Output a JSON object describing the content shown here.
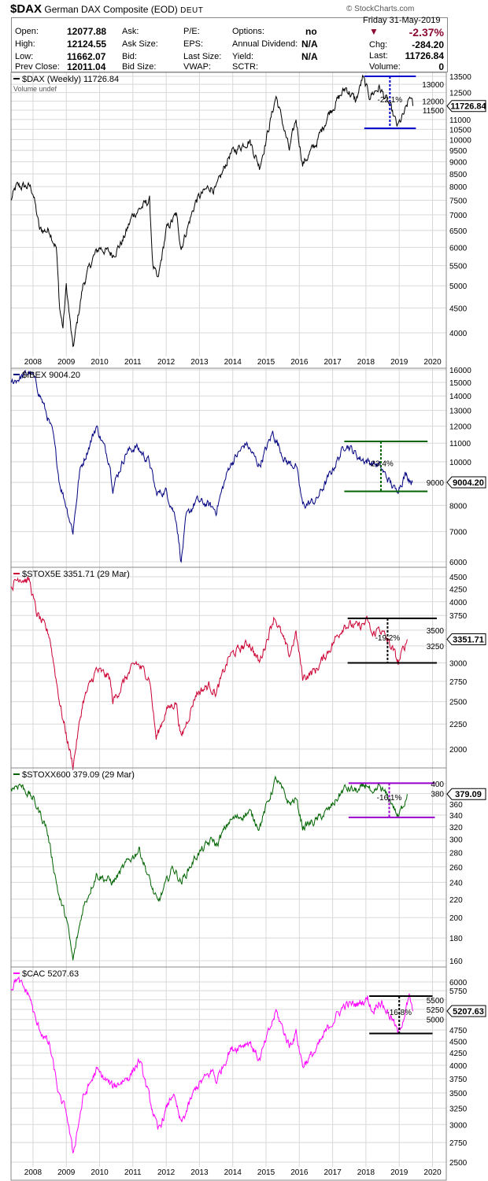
{
  "header": {
    "symbol": "$DAX",
    "name": "German DAX Composite (EOD)",
    "exchange": "DEUT",
    "copyright": "© StockCharts.com",
    "date": "Friday  31-May-2019",
    "fields": {
      "open_label": "Open:",
      "open": "12077.88",
      "high_label": "High:",
      "high": "12124.55",
      "low_label": "Low:",
      "low": "11662.07",
      "prev_label": "Prev Close:",
      "prev": "12011.04",
      "ask_label": "Ask:",
      "asksize_label": "Ask Size:",
      "bid_label": "Bid:",
      "bidsize_label": "Bid Size:",
      "pe_label": "P/E:",
      "eps_label": "EPS:",
      "lastsize_label": "Last Size:",
      "vwap_label": "VWAP:",
      "options_label": "Options:",
      "options": "no",
      "dividend_label": "Annual Dividend:",
      "dividend": "N/A",
      "yield_label": "Yield:",
      "yield": "N/A",
      "sctr_label": "SCTR:",
      "pct_change": "-2.37%",
      "chg_label": "Chg:",
      "chg": "-284.20",
      "last_label": "Last:",
      "last": "11726.84",
      "volume_label": "Volume:",
      "volume": "0"
    },
    "colors": {
      "down": "#8b0a32"
    }
  },
  "chart_data": [
    {
      "type": "line",
      "scale": "log",
      "legend": "$DAX (Weekly) 11726.84",
      "legend2": "Volume undef",
      "color": "#000000",
      "last_tag": "11726.84",
      "ticks": [
        13500,
        13000,
        12500,
        12000,
        11500,
        11000,
        10500,
        10000,
        9500,
        9000,
        8500,
        8000,
        7500,
        7000,
        6500,
        6000,
        5500,
        5000,
        4500,
        4000
      ],
      "x_ticks": [
        "2008",
        "2009",
        "2010",
        "2011",
        "2012",
        "2013",
        "2014",
        "2015",
        "2016",
        "2017",
        "2018",
        "2019",
        "2020"
      ],
      "annotation": {
        "high": 13500,
        "low": 10550,
        "label": "-22.1%",
        "color": "#0000cc",
        "x_from": 2017.95,
        "x_to": 2019.5,
        "x_mid": 2018.72
      },
      "points": [
        [
          2007.34,
          7500
        ],
        [
          2007.5,
          8000
        ],
        [
          2007.9,
          8000
        ],
        [
          2008.0,
          7800
        ],
        [
          2008.2,
          6500
        ],
        [
          2008.5,
          6500
        ],
        [
          2008.7,
          6000
        ],
        [
          2008.8,
          4500
        ],
        [
          2008.9,
          4100
        ],
        [
          2009.0,
          5000
        ],
        [
          2009.2,
          3700
        ],
        [
          2009.5,
          5000
        ],
        [
          2009.8,
          5700
        ],
        [
          2010.0,
          6000
        ],
        [
          2010.4,
          5800
        ],
        [
          2010.7,
          6200
        ],
        [
          2011.0,
          7000
        ],
        [
          2011.5,
          7500
        ],
        [
          2011.6,
          5500
        ],
        [
          2011.75,
          5100
        ],
        [
          2012.0,
          6500
        ],
        [
          2012.3,
          7000
        ],
        [
          2012.45,
          6000
        ],
        [
          2012.9,
          7500
        ],
        [
          2013.3,
          8000
        ],
        [
          2013.5,
          7900
        ],
        [
          2013.9,
          9300
        ],
        [
          2014.5,
          10000
        ],
        [
          2014.8,
          8800
        ],
        [
          2015.0,
          10000
        ],
        [
          2015.3,
          12300
        ],
        [
          2015.7,
          9500
        ],
        [
          2015.9,
          11000
        ],
        [
          2016.1,
          8900
        ],
        [
          2016.5,
          9800
        ],
        [
          2016.9,
          11400
        ],
        [
          2017.4,
          12800
        ],
        [
          2017.7,
          12000
        ],
        [
          2017.9,
          13400
        ],
        [
          2018.1,
          12300
        ],
        [
          2018.4,
          12800
        ],
        [
          2018.7,
          11800
        ],
        [
          2018.95,
          10600
        ],
        [
          2019.2,
          11500
        ],
        [
          2019.33,
          12300
        ],
        [
          2019.41,
          11727
        ]
      ]
    },
    {
      "type": "line",
      "scale": "log",
      "legend": "$IBEX 9004.20",
      "color": "#000080",
      "last_tag": "9004.20",
      "ticks": [
        16000,
        15000,
        14000,
        13000,
        12000,
        11000,
        10000,
        9000,
        8000,
        7000,
        6000
      ],
      "annotation": {
        "high": 11100,
        "low": 8600,
        "label": "-23.4%",
        "color": "#006400",
        "x_from": 2017.35,
        "x_to": 2019.85,
        "x_mid": 2018.45
      },
      "points": [
        [
          2007.34,
          15000
        ],
        [
          2007.9,
          15800
        ],
        [
          2008.0,
          15500
        ],
        [
          2008.3,
          13500
        ],
        [
          2008.6,
          11500
        ],
        [
          2008.8,
          9000
        ],
        [
          2009.0,
          8000
        ],
        [
          2009.2,
          7000
        ],
        [
          2009.4,
          9500
        ],
        [
          2009.9,
          12000
        ],
        [
          2010.3,
          10000
        ],
        [
          2010.4,
          8800
        ],
        [
          2010.8,
          10500
        ],
        [
          2011.1,
          10800
        ],
        [
          2011.5,
          10000
        ],
        [
          2011.7,
          8500
        ],
        [
          2012.0,
          8600
        ],
        [
          2012.3,
          7500
        ],
        [
          2012.45,
          6000
        ],
        [
          2012.6,
          7500
        ],
        [
          2012.9,
          8200
        ],
        [
          2013.3,
          8000
        ],
        [
          2013.5,
          7800
        ],
        [
          2013.9,
          9800
        ],
        [
          2014.4,
          11000
        ],
        [
          2014.8,
          9800
        ],
        [
          2015.2,
          11600
        ],
        [
          2015.6,
          10000
        ],
        [
          2015.9,
          9800
        ],
        [
          2016.1,
          8000
        ],
        [
          2016.5,
          8200
        ],
        [
          2016.9,
          9300
        ],
        [
          2017.4,
          11000
        ],
        [
          2017.8,
          10200
        ],
        [
          2018.1,
          10000
        ],
        [
          2018.4,
          9800
        ],
        [
          2018.9,
          8600
        ],
        [
          2019.2,
          9400
        ],
        [
          2019.4,
          9004
        ]
      ]
    },
    {
      "type": "line",
      "scale": "log",
      "legend": "$STOX5E 3351.71 (29 Mar)",
      "color": "#cc0033",
      "last_tag": "3351.71",
      "ticks": [
        4500,
        4250,
        4000,
        3750,
        3500,
        3250,
        3000,
        2750,
        2500,
        2250,
        2000
      ],
      "annotation": {
        "high": 3700,
        "low": 3000,
        "label": "-19.2%",
        "color": "#000000",
        "x_from": 2017.45,
        "x_to": 2020.13,
        "x_mid": 2018.65
      },
      "points": [
        [
          2007.34,
          4300
        ],
        [
          2007.6,
          4500
        ],
        [
          2007.9,
          4400
        ],
        [
          2008.1,
          3800
        ],
        [
          2008.5,
          3400
        ],
        [
          2008.8,
          2500
        ],
        [
          2008.9,
          2300
        ],
        [
          2009.2,
          1850
        ],
        [
          2009.5,
          2500
        ],
        [
          2009.9,
          2900
        ],
        [
          2010.3,
          2800
        ],
        [
          2010.4,
          2500
        ],
        [
          2010.8,
          2800
        ],
        [
          2011.1,
          3000
        ],
        [
          2011.5,
          2800
        ],
        [
          2011.7,
          2100
        ],
        [
          2012.0,
          2400
        ],
        [
          2012.3,
          2500
        ],
        [
          2012.45,
          2100
        ],
        [
          2012.9,
          2600
        ],
        [
          2013.3,
          2700
        ],
        [
          2013.5,
          2600
        ],
        [
          2013.9,
          3100
        ],
        [
          2014.5,
          3300
        ],
        [
          2014.8,
          3000
        ],
        [
          2015.25,
          3750
        ],
        [
          2015.7,
          3100
        ],
        [
          2015.9,
          3450
        ],
        [
          2016.1,
          2800
        ],
        [
          2016.5,
          2900
        ],
        [
          2016.9,
          3200
        ],
        [
          2017.35,
          3600
        ],
        [
          2017.8,
          3550
        ],
        [
          2018.05,
          3650
        ],
        [
          2018.2,
          3400
        ],
        [
          2018.4,
          3550
        ],
        [
          2018.8,
          3200
        ],
        [
          2018.97,
          3000
        ],
        [
          2019.24,
          3352
        ]
      ]
    },
    {
      "type": "line",
      "scale": "log",
      "legend": "$STOXX600 379.09 (29 Mar)",
      "color": "#006400",
      "last_tag": "379.09",
      "ticks": [
        400,
        380,
        360,
        340,
        320,
        300,
        280,
        260,
        240,
        220,
        200,
        180,
        160
      ],
      "annotation": {
        "high": 401,
        "low": 336,
        "label": "-16.1%",
        "color": "#9900cc",
        "x_from": 2017.48,
        "x_to": 2020.07,
        "x_mid": 2018.7
      },
      "points": [
        [
          2007.34,
          390
        ],
        [
          2007.6,
          400
        ],
        [
          2008.0,
          370
        ],
        [
          2008.4,
          320
        ],
        [
          2008.8,
          220
        ],
        [
          2009.0,
          200
        ],
        [
          2009.2,
          160
        ],
        [
          2009.5,
          210
        ],
        [
          2009.9,
          250
        ],
        [
          2010.4,
          240
        ],
        [
          2010.9,
          270
        ],
        [
          2011.2,
          285
        ],
        [
          2011.6,
          230
        ],
        [
          2011.75,
          215
        ],
        [
          2012.2,
          260
        ],
        [
          2012.45,
          240
        ],
        [
          2012.9,
          275
        ],
        [
          2013.4,
          300
        ],
        [
          2013.5,
          290
        ],
        [
          2013.9,
          330
        ],
        [
          2014.5,
          345
        ],
        [
          2014.8,
          320
        ],
        [
          2015.3,
          410
        ],
        [
          2015.7,
          360
        ],
        [
          2015.9,
          370
        ],
        [
          2016.1,
          320
        ],
        [
          2016.5,
          330
        ],
        [
          2016.9,
          350
        ],
        [
          2017.35,
          390
        ],
        [
          2017.8,
          385
        ],
        [
          2018.05,
          400
        ],
        [
          2018.2,
          370
        ],
        [
          2018.4,
          395
        ],
        [
          2018.8,
          360
        ],
        [
          2018.97,
          335
        ],
        [
          2019.24,
          379
        ]
      ]
    },
    {
      "type": "line",
      "scale": "log",
      "legend": "$CAC 5207.63",
      "color": "#ff00ff",
      "last_tag": "5207.63",
      "ticks": [
        6000,
        5750,
        5500,
        5250,
        5000,
        4750,
        4500,
        4250,
        4000,
        3750,
        3500,
        3250,
        3000,
        2750,
        2500
      ],
      "x_ticks": [
        "2008",
        "2009",
        "2010",
        "2011",
        "2012",
        "2013",
        "2014",
        "2015",
        "2016",
        "2017",
        "2018",
        "2019",
        "2020"
      ],
      "annotation": {
        "high": 5600,
        "low": 4670,
        "label": "-16.8%",
        "color": "#000000",
        "x_from": 2018.1,
        "x_to": 2020.0,
        "x_mid": 2019.0
      },
      "points": [
        [
          2007.34,
          5800
        ],
        [
          2007.5,
          6100
        ],
        [
          2007.9,
          5600
        ],
        [
          2008.1,
          4900
        ],
        [
          2008.5,
          4400
        ],
        [
          2008.8,
          3400
        ],
        [
          2009.0,
          3200
        ],
        [
          2009.2,
          2600
        ],
        [
          2009.5,
          3400
        ],
        [
          2009.9,
          3900
        ],
        [
          2010.4,
          3600
        ],
        [
          2010.9,
          3800
        ],
        [
          2011.2,
          4100
        ],
        [
          2011.6,
          3200
        ],
        [
          2011.75,
          2900
        ],
        [
          2012.2,
          3500
        ],
        [
          2012.45,
          3000
        ],
        [
          2012.9,
          3600
        ],
        [
          2013.4,
          3900
        ],
        [
          2013.5,
          3700
        ],
        [
          2013.9,
          4300
        ],
        [
          2014.5,
          4500
        ],
        [
          2014.8,
          4100
        ],
        [
          2015.3,
          5200
        ],
        [
          2015.7,
          4400
        ],
        [
          2015.9,
          4700
        ],
        [
          2016.1,
          4000
        ],
        [
          2016.5,
          4300
        ],
        [
          2016.9,
          4850
        ],
        [
          2017.35,
          5350
        ],
        [
          2017.8,
          5400
        ],
        [
          2018.05,
          5550
        ],
        [
          2018.2,
          5200
        ],
        [
          2018.4,
          5500
        ],
        [
          2018.8,
          5000
        ],
        [
          2018.97,
          4650
        ],
        [
          2019.3,
          5550
        ],
        [
          2019.41,
          5208
        ]
      ]
    }
  ]
}
